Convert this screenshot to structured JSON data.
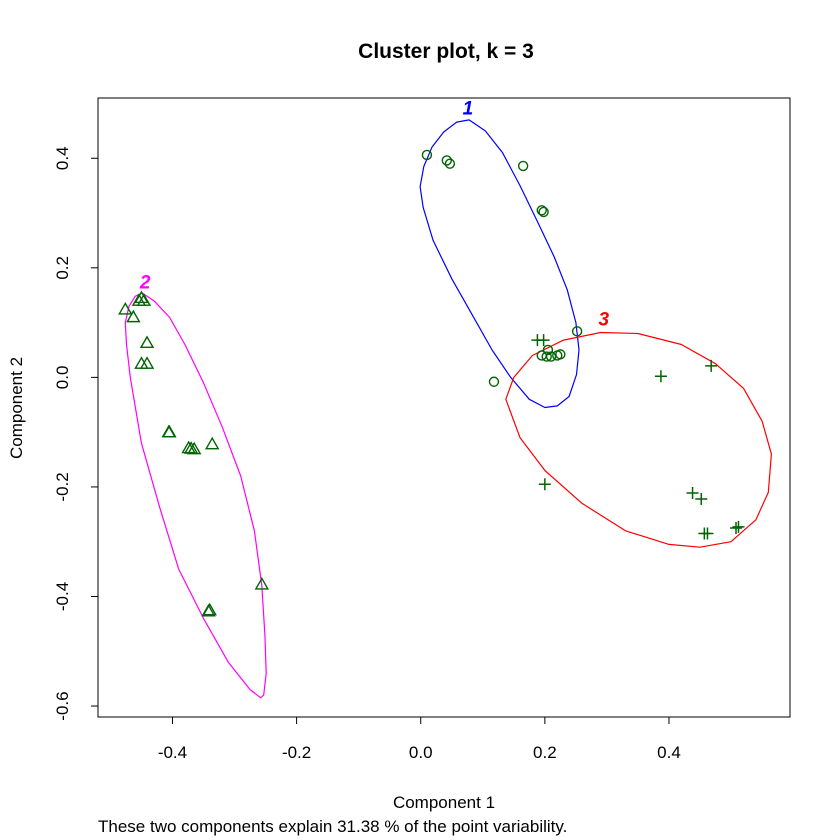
{
  "chart_data": {
    "type": "scatter",
    "title": "Cluster plot, k =  3",
    "xlabel": "Component 1",
    "ylabel": "Component 2",
    "footnote": "These two components explain 31.38 % of the point variability.",
    "xlim": [
      -0.52,
      0.595
    ],
    "ylim": [
      -0.62,
      0.51
    ],
    "x_ticks": [
      -0.4,
      -0.2,
      0.0,
      0.2,
      0.4
    ],
    "x_tick_labels": [
      "-0.4",
      "-0.2",
      "0.0",
      "0.2",
      "0.4"
    ],
    "y_ticks": [
      -0.6,
      -0.4,
      -0.2,
      0.0,
      0.2,
      0.4
    ],
    "y_tick_labels": [
      "-0.6",
      "-0.4",
      "-0.2",
      "0.0",
      "0.2",
      "0.4"
    ],
    "grid": false,
    "point_color": "#006400",
    "clusters": [
      {
        "label": "1",
        "color": "#0000ff",
        "marker": "circle",
        "points": [
          [
            0.01,
            0.406
          ],
          [
            0.042,
            0.396
          ],
          [
            0.047,
            0.39
          ],
          [
            0.165,
            0.386
          ],
          [
            0.195,
            0.305
          ],
          [
            0.198,
            0.302
          ],
          [
            0.252,
            0.084
          ],
          [
            0.205,
            0.05
          ],
          [
            0.195,
            0.04
          ],
          [
            0.203,
            0.038
          ],
          [
            0.21,
            0.038
          ],
          [
            0.22,
            0.04
          ],
          [
            0.225,
            0.042
          ],
          [
            0.118,
            -0.008
          ]
        ],
        "ellipse": [
          [
            -0.001,
            0.348
          ],
          [
            0.005,
            0.385
          ],
          [
            0.018,
            0.42
          ],
          [
            0.037,
            0.448
          ],
          [
            0.058,
            0.466
          ],
          [
            0.078,
            0.47
          ],
          [
            0.104,
            0.45
          ],
          [
            0.132,
            0.41
          ],
          [
            0.16,
            0.35
          ],
          [
            0.19,
            0.28
          ],
          [
            0.215,
            0.22
          ],
          [
            0.236,
            0.16
          ],
          [
            0.25,
            0.1
          ],
          [
            0.255,
            0.05
          ],
          [
            0.251,
            0.005
          ],
          [
            0.239,
            -0.035
          ],
          [
            0.22,
            -0.052
          ],
          [
            0.2,
            -0.055
          ],
          [
            0.175,
            -0.04
          ],
          [
            0.145,
            0.0
          ],
          [
            0.115,
            0.05
          ],
          [
            0.085,
            0.11
          ],
          [
            0.05,
            0.18
          ],
          [
            0.02,
            0.25
          ],
          [
            0.004,
            0.31
          ],
          [
            -0.001,
            0.348
          ]
        ]
      },
      {
        "label": "2",
        "color": "#ff00ff",
        "marker": "triangle",
        "points": [
          [
            -0.476,
            0.124
          ],
          [
            -0.454,
            0.14
          ],
          [
            -0.45,
            0.145
          ],
          [
            -0.446,
            0.14
          ],
          [
            -0.463,
            0.11
          ],
          [
            -0.441,
            0.063
          ],
          [
            -0.45,
            0.025
          ],
          [
            -0.441,
            0.025
          ],
          [
            -0.406,
            -0.1
          ],
          [
            -0.405,
            -0.1
          ],
          [
            -0.374,
            -0.129
          ],
          [
            -0.37,
            -0.13
          ],
          [
            -0.365,
            -0.131
          ],
          [
            -0.336,
            -0.122
          ],
          [
            -0.256,
            -0.378
          ],
          [
            -0.342,
            -0.427
          ],
          [
            -0.34,
            -0.425
          ]
        ],
        "ellipse": [
          [
            -0.476,
            0.1
          ],
          [
            -0.47,
            0.13
          ],
          [
            -0.46,
            0.148
          ],
          [
            -0.449,
            0.154
          ],
          [
            -0.43,
            0.14
          ],
          [
            -0.405,
            0.11
          ],
          [
            -0.38,
            0.06
          ],
          [
            -0.35,
            -0.01
          ],
          [
            -0.32,
            -0.09
          ],
          [
            -0.29,
            -0.18
          ],
          [
            -0.268,
            -0.28
          ],
          [
            -0.256,
            -0.38
          ],
          [
            -0.251,
            -0.47
          ],
          [
            -0.249,
            -0.54
          ],
          [
            -0.253,
            -0.58
          ],
          [
            -0.258,
            -0.585
          ],
          [
            -0.275,
            -0.57
          ],
          [
            -0.31,
            -0.52
          ],
          [
            -0.35,
            -0.44
          ],
          [
            -0.39,
            -0.35
          ],
          [
            -0.42,
            -0.24
          ],
          [
            -0.45,
            -0.12
          ],
          [
            -0.468,
            0.0
          ],
          [
            -0.474,
            0.06
          ],
          [
            -0.476,
            0.1
          ]
        ]
      },
      {
        "label": "3",
        "color": "#ff0000",
        "marker": "plus",
        "points": [
          [
            0.188,
            0.068
          ],
          [
            0.198,
            0.068
          ],
          [
            0.387,
            0.002
          ],
          [
            0.468,
            0.021
          ],
          [
            0.2,
            -0.195
          ],
          [
            0.438,
            -0.211
          ],
          [
            0.452,
            -0.222
          ],
          [
            0.457,
            -0.285
          ],
          [
            0.462,
            -0.285
          ],
          [
            0.508,
            -0.275
          ],
          [
            0.512,
            -0.273
          ]
        ],
        "ellipse": [
          [
            0.137,
            -0.04
          ],
          [
            0.15,
            0.0
          ],
          [
            0.18,
            0.04
          ],
          [
            0.23,
            0.068
          ],
          [
            0.29,
            0.082
          ],
          [
            0.35,
            0.08
          ],
          [
            0.42,
            0.06
          ],
          [
            0.475,
            0.025
          ],
          [
            0.52,
            -0.02
          ],
          [
            0.55,
            -0.08
          ],
          [
            0.565,
            -0.14
          ],
          [
            0.56,
            -0.21
          ],
          [
            0.54,
            -0.26
          ],
          [
            0.5,
            -0.3
          ],
          [
            0.45,
            -0.31
          ],
          [
            0.4,
            -0.305
          ],
          [
            0.33,
            -0.28
          ],
          [
            0.26,
            -0.23
          ],
          [
            0.2,
            -0.17
          ],
          [
            0.16,
            -0.11
          ],
          [
            0.137,
            -0.04
          ]
        ],
        "label_anchor": [
          0.295,
          0.095
        ]
      }
    ],
    "cluster_label_positions": [
      [
        0.076,
        0.48
      ],
      [
        -0.444,
        0.162
      ],
      [
        0.295,
        0.095
      ]
    ]
  }
}
